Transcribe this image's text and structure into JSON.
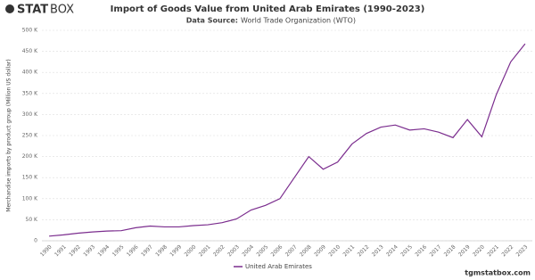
{
  "chart_data": {
    "type": "line",
    "logo_bold": "STAT",
    "logo_light": "BOX",
    "title": "Import of Goods Value from United Arab Emirates (1990-2023)",
    "source_label": "Data Source:",
    "source": "World Trade Organization (WTO)",
    "y_label": "Merchandise imports by product group (Million US dollar)",
    "watermark": "tgmstatbox.com",
    "categories": [
      "1990",
      "1991",
      "1992",
      "1993",
      "1994",
      "1995",
      "1996",
      "1997",
      "1998",
      "1999",
      "2000",
      "2001",
      "2002",
      "2003",
      "2004",
      "2005",
      "2006",
      "2007",
      "2008",
      "2009",
      "2010",
      "2011",
      "2012",
      "2013",
      "2014",
      "2015",
      "2016",
      "2017",
      "2018",
      "2019",
      "2020",
      "2021",
      "2022",
      "2023"
    ],
    "series": [
      {
        "name": "United Arab Emirates",
        "color": "#7b2d8e",
        "values": [
          11000,
          14000,
          18000,
          21000,
          23000,
          24000,
          31000,
          35000,
          33000,
          33000,
          36000,
          38000,
          43000,
          52000,
          73000,
          84000,
          100000,
          150000,
          200000,
          170000,
          187000,
          230000,
          255000,
          270000,
          275000,
          263000,
          266000,
          258000,
          245000,
          288000,
          247000,
          347000,
          425000,
          468000
        ]
      }
    ],
    "ylim": [
      0,
      500000
    ],
    "yticks": [
      {
        "value": 0,
        "label": "0"
      },
      {
        "value": 50000,
        "label": "50 K"
      },
      {
        "value": 100000,
        "label": "100 K"
      },
      {
        "value": 150000,
        "label": "150 K"
      },
      {
        "value": 200000,
        "label": "200 K"
      },
      {
        "value": 250000,
        "label": "250 K"
      },
      {
        "value": 300000,
        "label": "300 K"
      },
      {
        "value": 350000,
        "label": "350 K"
      },
      {
        "value": 400000,
        "label": "400 K"
      },
      {
        "value": 450000,
        "label": "450 K"
      },
      {
        "value": 500000,
        "label": "500 K"
      }
    ],
    "grid": true
  }
}
